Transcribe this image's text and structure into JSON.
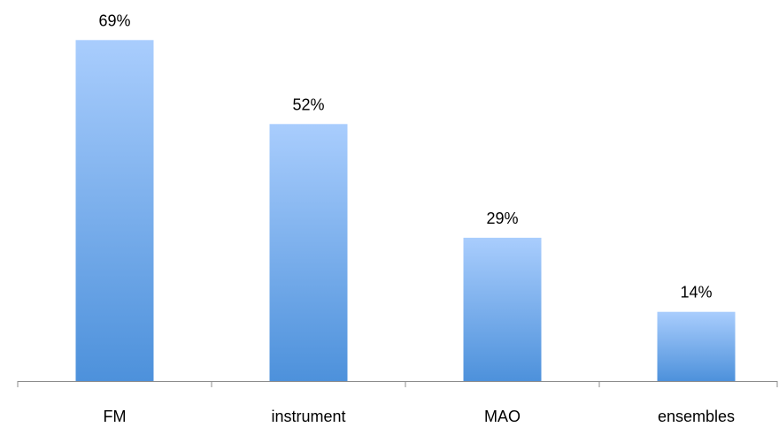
{
  "chart_data": {
    "type": "bar",
    "categories": [
      "FM",
      "instrument",
      "MAO",
      "ensembles"
    ],
    "values": [
      69,
      52,
      29,
      14
    ],
    "value_labels": [
      "69%",
      "52%",
      "29%",
      "14%"
    ],
    "unit": "%",
    "ylim": [
      0,
      70
    ],
    "grid": false,
    "legend": "none",
    "bar_gradient": {
      "top": "#a9cdfd",
      "bottom": "#4d91db"
    },
    "axis_color": "#8c8c8c"
  }
}
